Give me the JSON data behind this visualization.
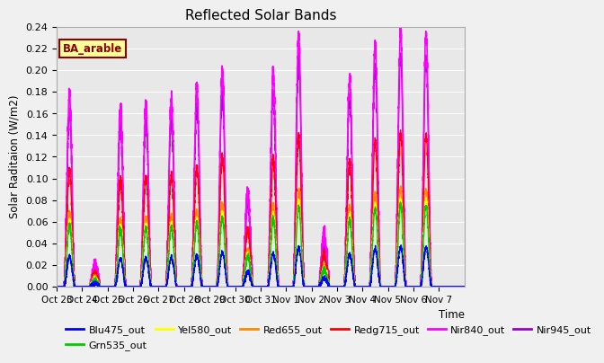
{
  "title": "Reflected Solar Bands",
  "xlabel": "Time",
  "ylabel": "Solar Raditaion (W/m2)",
  "ylim": [
    0,
    0.24
  ],
  "yticks": [
    0.0,
    0.02,
    0.04,
    0.06,
    0.08,
    0.1,
    0.12,
    0.14,
    0.16,
    0.18,
    0.2,
    0.22,
    0.24
  ],
  "background_color": "#e8e8e8",
  "annotation_text": "BA_arable",
  "annotation_color": "#8B0000",
  "annotation_bg": "#ffff99",
  "days": [
    "Oct 23",
    "Oct 24",
    "Oct 25",
    "Oct 26",
    "Oct 27",
    "Oct 28",
    "Oct 29",
    "Oct 30",
    "Oct 31",
    "Nov 1",
    "Nov 2",
    "Nov 3",
    "Nov 4",
    "Nov 5",
    "Nov 6",
    "Nov 7"
  ],
  "series_order_plot": [
    "Nir945_out",
    "Nir840_out",
    "Redg715_out",
    "Red655_out",
    "Yel580_out",
    "Grn535_out",
    "Blu475_out"
  ],
  "series": {
    "Blu475_out": {
      "color": "#0000FF",
      "lw": 1.0
    },
    "Grn535_out": {
      "color": "#00CC00",
      "lw": 1.0
    },
    "Yel580_out": {
      "color": "#FFFF00",
      "lw": 1.0
    },
    "Red655_out": {
      "color": "#FF8800",
      "lw": 1.0
    },
    "Redg715_out": {
      "color": "#FF0000",
      "lw": 1.0
    },
    "Nir840_out": {
      "color": "#FF00FF",
      "lw": 1.2
    },
    "Nir945_out": {
      "color": "#9900CC",
      "lw": 1.0
    }
  },
  "peak_scale": {
    "Blu475_out": 0.155,
    "Grn535_out": 0.32,
    "Yel580_out": 0.34,
    "Red655_out": 0.38,
    "Redg715_out": 0.6,
    "Nir840_out": 1.0,
    "Nir945_out": 0.9
  },
  "day_peaks_nir840": [
    0.178,
    0.018,
    0.165,
    0.17,
    0.173,
    0.185,
    0.2,
    0.088,
    0.197,
    0.233,
    0.048,
    0.193,
    0.225,
    0.235,
    0.235,
    0.0
  ],
  "legend_order": [
    "Blu475_out",
    "Grn535_out",
    "Yel580_out",
    "Red655_out",
    "Redg715_out",
    "Nir840_out",
    "Nir945_out"
  ]
}
